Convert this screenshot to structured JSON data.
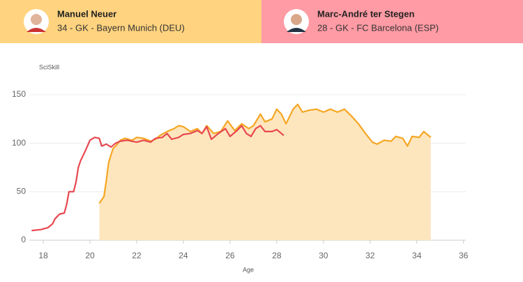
{
  "players": [
    {
      "info": "34 - GK - Bayern Munich (DEU)",
      "color": "#ffd37f"
    },
    {
      "info": "28 - GK - FC Barcelona (ESP)",
      "color": "#ff9ba4"
    }
  ],
  "chart_data": {
    "type": "line",
    "y_label": "SciSkill",
    "x_label": "Age",
    "xlim": [
      17.4,
      36.1
    ],
    "ylim": [
      0,
      160
    ],
    "xticks": [
      18,
      20,
      22,
      24,
      26,
      28,
      30,
      32,
      34,
      36
    ],
    "yticks": [
      0,
      50,
      100,
      150
    ],
    "grid": true,
    "series": [
      {
        "name": "Manuel Neuer",
        "color": "#f5a623",
        "fill": "#fde6be",
        "x": [
          20.4,
          20.6,
          20.7,
          20.8,
          20.9,
          21.0,
          21.1,
          21.3,
          21.5,
          21.8,
          22.0,
          22.3,
          22.6,
          22.8,
          23.0,
          23.3,
          23.6,
          23.8,
          24.0,
          24.3,
          24.6,
          24.8,
          25.0,
          25.3,
          25.6,
          25.9,
          26.2,
          26.5,
          26.8,
          27.0,
          27.3,
          27.5,
          27.8,
          28.0,
          28.2,
          28.4,
          28.7,
          28.9,
          29.1,
          29.4,
          29.7,
          30.0,
          30.3,
          30.6,
          30.9,
          31.2,
          31.5,
          31.8,
          32.1,
          32.3,
          32.6,
          32.9,
          33.1,
          33.4,
          33.6,
          33.8,
          34.1,
          34.3,
          34.5,
          34.6
        ],
        "values": [
          38,
          45,
          62,
          80,
          88,
          95,
          97,
          103,
          105,
          103,
          106,
          105,
          102,
          104,
          108,
          112,
          115,
          118,
          117,
          112,
          115,
          110,
          118,
          110,
          112,
          123,
          113,
          120,
          115,
          118,
          130,
          122,
          125,
          135,
          130,
          120,
          135,
          140,
          132,
          134,
          135,
          132,
          135,
          132,
          135,
          128,
          120,
          110,
          101,
          99,
          103,
          102,
          107,
          105,
          97,
          107,
          106,
          112,
          108,
          106
        ]
      },
      {
        "name": "Marc-André ter Stegen",
        "color": "#e8474f",
        "x": [
          17.5,
          17.9,
          18.2,
          18.4,
          18.5,
          18.7,
          18.9,
          19.0,
          19.1,
          19.3,
          19.4,
          19.5,
          19.6,
          19.8,
          20.0,
          20.2,
          20.4,
          20.5,
          20.7,
          20.9,
          21.1,
          21.3,
          21.6,
          22.0,
          22.3,
          22.6,
          22.8,
          23.1,
          23.3,
          23.5,
          23.8,
          24.0,
          24.3,
          24.6,
          24.8,
          25.0,
          25.2,
          25.5,
          25.8,
          26.0,
          26.3,
          26.5,
          26.7,
          26.9,
          27.1,
          27.3,
          27.5,
          27.8,
          28.0,
          28.2,
          28.3
        ],
        "values": [
          10,
          11,
          13,
          17,
          22,
          27,
          28,
          37,
          50,
          50,
          60,
          75,
          82,
          92,
          103,
          106,
          105,
          97,
          99,
          96,
          100,
          102,
          103,
          101,
          103,
          101,
          105,
          106,
          110,
          104,
          106,
          109,
          110,
          113,
          110,
          117,
          104,
          110,
          115,
          107,
          113,
          118,
          110,
          107,
          115,
          118,
          112,
          112,
          114,
          110,
          108
        ]
      }
    ]
  }
}
